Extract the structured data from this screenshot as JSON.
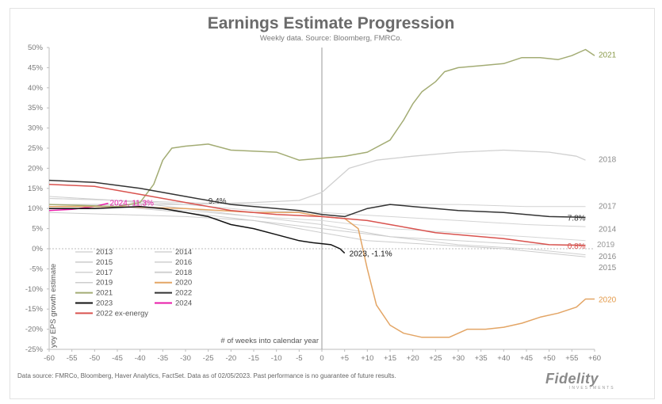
{
  "chart_data": {
    "type": "line",
    "title": "Earnings Estimate Progression",
    "subtitle": "Weekly data.  Source: Bloomberg, FMRCo.",
    "xlabel": "# of weeks into calendar year",
    "ylabel": "yoy EPS growth estimate",
    "xlim": [
      -60,
      60
    ],
    "ylim": [
      -25,
      50
    ],
    "x_ticks": [
      -60,
      -55,
      -50,
      -45,
      -40,
      -35,
      -30,
      -25,
      -20,
      -15,
      -10,
      -5,
      0,
      5,
      10,
      15,
      20,
      25,
      30,
      35,
      40,
      45,
      50,
      55,
      60
    ],
    "x_tick_labels": [
      "-60",
      "-55",
      "-50",
      "-45",
      "-40",
      "-35",
      "-30",
      "-25",
      "-20",
      "-15",
      "-10",
      "-5",
      "0",
      "+5",
      "+10",
      "+15",
      "+20",
      "+25",
      "+30",
      "+35",
      "+40",
      "+45",
      "+50",
      "+55",
      "+60"
    ],
    "y_ticks": [
      -25,
      -20,
      -15,
      -10,
      -5,
      0,
      5,
      10,
      15,
      20,
      25,
      30,
      35,
      40,
      45,
      50
    ],
    "y_tick_labels": [
      "-25%",
      "-20%",
      "-15%",
      "-10%",
      "-5%",
      "0%",
      "5%",
      "10%",
      "15%",
      "20%",
      "25%",
      "30%",
      "35%",
      "40%",
      "45%",
      "50%"
    ],
    "series": [
      {
        "name": "2013",
        "color": "#d6d6d6",
        "width": 1,
        "points": [
          [
            -60,
            11
          ],
          [
            -45,
            10.5
          ],
          [
            -30,
            9.5
          ],
          [
            -15,
            8
          ],
          [
            0,
            7
          ],
          [
            15,
            5
          ],
          [
            30,
            4
          ],
          [
            45,
            3
          ],
          [
            58,
            2
          ]
        ],
        "end_label": ""
      },
      {
        "name": "2014",
        "color": "#d3d3d3",
        "width": 1,
        "points": [
          [
            -60,
            12.5
          ],
          [
            -45,
            12
          ],
          [
            -30,
            11
          ],
          [
            -15,
            9.5
          ],
          [
            0,
            9
          ],
          [
            15,
            8
          ],
          [
            30,
            7
          ],
          [
            45,
            6
          ],
          [
            58,
            5.5
          ]
        ],
        "end_label": "2014"
      },
      {
        "name": "2015",
        "color": "#cccccc",
        "width": 1,
        "points": [
          [
            -60,
            11
          ],
          [
            -45,
            10.5
          ],
          [
            -30,
            9
          ],
          [
            -15,
            7
          ],
          [
            0,
            4
          ],
          [
            10,
            2
          ],
          [
            25,
            1
          ],
          [
            40,
            0
          ],
          [
            58,
            -2
          ]
        ],
        "end_label": "2015"
      },
      {
        "name": "2016",
        "color": "#cfcfcf",
        "width": 1,
        "points": [
          [
            -60,
            13
          ],
          [
            -45,
            12
          ],
          [
            -30,
            10
          ],
          [
            -15,
            8
          ],
          [
            0,
            6
          ],
          [
            15,
            3
          ],
          [
            30,
            1
          ],
          [
            45,
            0
          ],
          [
            58,
            -1.5
          ]
        ],
        "end_label": "2016"
      },
      {
        "name": "2017",
        "color": "#d2d2d2",
        "width": 1,
        "points": [
          [
            -60,
            12.5
          ],
          [
            -45,
            12
          ],
          [
            -30,
            11.5
          ],
          [
            -15,
            11
          ],
          [
            0,
            11
          ],
          [
            15,
            11
          ],
          [
            30,
            11
          ],
          [
            45,
            10.5
          ],
          [
            58,
            10.5
          ]
        ],
        "end_label": "2017"
      },
      {
        "name": "2018",
        "color": "#d0d0d0",
        "width": 1.3,
        "points": [
          [
            -60,
            11
          ],
          [
            -45,
            11
          ],
          [
            -30,
            11
          ],
          [
            -15,
            11.5
          ],
          [
            -5,
            12
          ],
          [
            0,
            14
          ],
          [
            3,
            17
          ],
          [
            6,
            20
          ],
          [
            12,
            22
          ],
          [
            20,
            23
          ],
          [
            30,
            24
          ],
          [
            40,
            24.5
          ],
          [
            50,
            24
          ],
          [
            56,
            23
          ],
          [
            58,
            22
          ]
        ],
        "end_label": "2018"
      },
      {
        "name": "2019",
        "color": "#cdcdcd",
        "width": 1,
        "points": [
          [
            -60,
            9
          ],
          [
            -45,
            8.5
          ],
          [
            -30,
            8
          ],
          [
            -15,
            7
          ],
          [
            0,
            5
          ],
          [
            15,
            3
          ],
          [
            30,
            2
          ],
          [
            45,
            1
          ],
          [
            58,
            1
          ]
        ],
        "end_label": "2019"
      },
      {
        "name": "2020",
        "color": "#e3a565",
        "width": 1.5,
        "points": [
          [
            -60,
            10.5
          ],
          [
            -45,
            10.5
          ],
          [
            -30,
            10
          ],
          [
            -15,
            9
          ],
          [
            -5,
            9
          ],
          [
            0,
            8
          ],
          [
            5,
            7.5
          ],
          [
            8,
            5
          ],
          [
            10,
            -5
          ],
          [
            12,
            -14
          ],
          [
            15,
            -19
          ],
          [
            18,
            -21
          ],
          [
            22,
            -22
          ],
          [
            28,
            -22
          ],
          [
            30,
            -21
          ],
          [
            32,
            -20
          ],
          [
            36,
            -20
          ],
          [
            40,
            -19.5
          ],
          [
            44,
            -18.5
          ],
          [
            48,
            -17
          ],
          [
            52,
            -16
          ],
          [
            56,
            -14.5
          ],
          [
            58,
            -12.5
          ],
          [
            60,
            -12.5
          ]
        ],
        "end_label": "2020"
      },
      {
        "name": "2021",
        "color": "#a3ac74",
        "width": 1.5,
        "points": [
          [
            -60,
            11
          ],
          [
            -45,
            10.5
          ],
          [
            -40,
            11.5
          ],
          [
            -37,
            16
          ],
          [
            -35,
            22
          ],
          [
            -33,
            25
          ],
          [
            -30,
            25.5
          ],
          [
            -25,
            26
          ],
          [
            -20,
            24.5
          ],
          [
            -10,
            24
          ],
          [
            -5,
            22
          ],
          [
            0,
            22.5
          ],
          [
            5,
            23
          ],
          [
            10,
            24
          ],
          [
            15,
            27
          ],
          [
            18,
            32
          ],
          [
            20,
            36
          ],
          [
            22,
            39
          ],
          [
            25,
            41.5
          ],
          [
            27,
            44
          ],
          [
            30,
            45
          ],
          [
            35,
            45.5
          ],
          [
            40,
            46
          ],
          [
            44,
            47.5
          ],
          [
            48,
            47.5
          ],
          [
            52,
            47
          ],
          [
            55,
            48
          ],
          [
            58,
            49.5
          ],
          [
            60,
            48
          ]
        ],
        "end_label": "2021"
      },
      {
        "name": "2022",
        "color": "#333333",
        "width": 1.5,
        "points": [
          [
            -60,
            17
          ],
          [
            -50,
            16.5
          ],
          [
            -40,
            15
          ],
          [
            -30,
            13
          ],
          [
            -20,
            11
          ],
          [
            -10,
            10
          ],
          [
            -5,
            9.5
          ],
          [
            0,
            8.5
          ],
          [
            5,
            8
          ],
          [
            10,
            10
          ],
          [
            15,
            11
          ],
          [
            20,
            10.5
          ],
          [
            25,
            10
          ],
          [
            30,
            9.5
          ],
          [
            40,
            9
          ],
          [
            50,
            8
          ],
          [
            58,
            7.8
          ]
        ],
        "end_label": "7.8%"
      },
      {
        "name": "2023",
        "color": "#111111",
        "width": 1.5,
        "points": [
          [
            -60,
            10
          ],
          [
            -50,
            10
          ],
          [
            -40,
            10.5
          ],
          [
            -35,
            10
          ],
          [
            -30,
            9
          ],
          [
            -25,
            8
          ],
          [
            -20,
            6
          ],
          [
            -15,
            5
          ],
          [
            -10,
            3.5
          ],
          [
            -5,
            2
          ],
          [
            -2,
            1.5
          ],
          [
            2,
            1
          ],
          [
            4,
            0
          ],
          [
            5,
            -1.1
          ]
        ],
        "end_label": ""
      },
      {
        "name": "2024",
        "color": "#e81aa8",
        "width": 1.5,
        "points": [
          [
            -60,
            9.5
          ],
          [
            -55,
            9.8
          ],
          [
            -50,
            10.5
          ],
          [
            -47,
            11.3
          ]
        ],
        "end_label": ""
      },
      {
        "name": "2022 ex-energy",
        "color": "#d9534f",
        "width": 1.5,
        "points": [
          [
            -60,
            16
          ],
          [
            -50,
            15.5
          ],
          [
            -40,
            13.5
          ],
          [
            -30,
            11.5
          ],
          [
            -20,
            9.5
          ],
          [
            -10,
            8.5
          ],
          [
            0,
            8
          ],
          [
            5,
            7.5
          ],
          [
            10,
            7
          ],
          [
            15,
            6
          ],
          [
            20,
            5
          ],
          [
            25,
            4
          ],
          [
            30,
            3.5
          ],
          [
            40,
            2.5
          ],
          [
            50,
            1
          ],
          [
            58,
            0.8
          ]
        ],
        "end_label": "0.8%"
      }
    ],
    "annotations": [
      {
        "text": "9.4%",
        "x": -23,
        "y": 10.8,
        "color": "#333333"
      },
      {
        "text": "2024, 11.3%",
        "x": -47,
        "y": 11.3,
        "color": "#e81aa8"
      },
      {
        "text": "2023, -1.1%",
        "x": 5,
        "y": -1.1,
        "color": "#111111"
      }
    ],
    "legend": {
      "placement": "bottom-left",
      "columns": 2,
      "items": [
        "2013",
        "2014",
        "2015",
        "2016",
        "2017",
        "2018",
        "2019",
        "2020",
        "2021",
        "2022",
        "2023",
        "2024",
        "2022 ex-energy"
      ]
    },
    "grid": false,
    "vertical_line_at_x": 0
  },
  "footer": {
    "source": "Data source: FMRCo, Bloomberg, Haver Analytics, FactSet. Data as of 02/05/2023. Past performance is no guarantee of future results.",
    "logo": "Fidelity",
    "logo_sub": "INVESTMENTS"
  }
}
